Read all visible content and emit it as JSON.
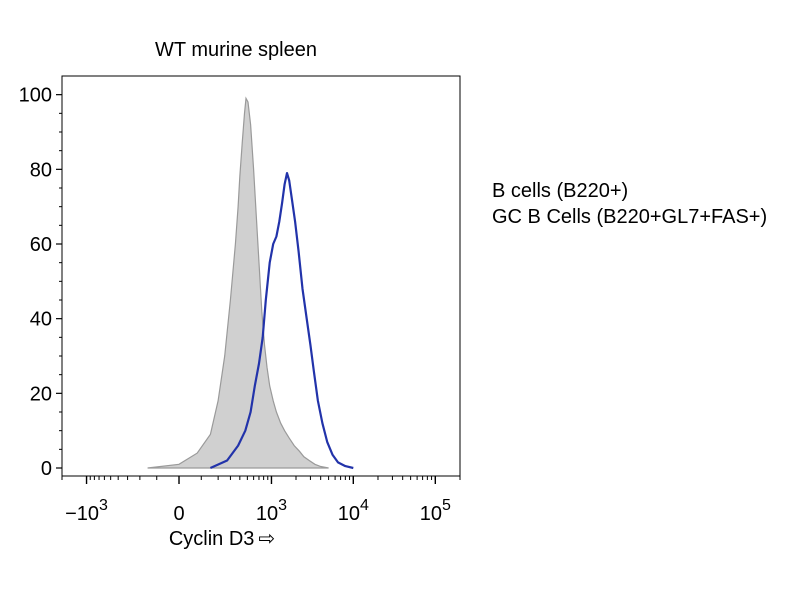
{
  "chart_data": {
    "type": "area",
    "title": "WT murine spleen",
    "xlabel": "Cyclin D3",
    "xlabel_arrow": "⇨",
    "ylabel": "",
    "x_scale": "biexponential",
    "xlim": [
      -2000,
      200000
    ],
    "ylim": [
      0,
      105
    ],
    "x_ticks": [
      {
        "base": "−10",
        "exp": "3",
        "value": -1000
      },
      {
        "base": "0",
        "exp": "",
        "value": 0
      },
      {
        "base": "10",
        "exp": "3",
        "value": 1000
      },
      {
        "base": "10",
        "exp": "4",
        "value": 10000
      },
      {
        "base": "10",
        "exp": "5",
        "value": 100000
      }
    ],
    "y_ticks": [
      "0",
      "20",
      "40",
      "60",
      "80",
      "100"
    ],
    "series": [
      {
        "name": "B cells  (B220+)",
        "style": "filled",
        "color": "#b4b4b4",
        "fill": "#d0d0d0",
        "stroke": "#9a9a9a",
        "points": [
          [
            -150,
            0
          ],
          [
            0,
            1
          ],
          [
            80,
            4
          ],
          [
            150,
            9
          ],
          [
            200,
            18
          ],
          [
            250,
            30
          ],
          [
            300,
            45
          ],
          [
            350,
            60
          ],
          [
            380,
            70
          ],
          [
            400,
            78
          ],
          [
            430,
            87
          ],
          [
            460,
            95
          ],
          [
            480,
            99
          ],
          [
            510,
            98
          ],
          [
            550,
            92
          ],
          [
            600,
            80
          ],
          [
            650,
            67
          ],
          [
            700,
            55
          ],
          [
            760,
            42
          ],
          [
            820,
            33
          ],
          [
            880,
            27
          ],
          [
            950,
            22
          ],
          [
            1050,
            18
          ],
          [
            1150,
            15
          ],
          [
            1300,
            12
          ],
          [
            1450,
            10
          ],
          [
            1650,
            8
          ],
          [
            1900,
            6
          ],
          [
            2200,
            4.5
          ],
          [
            2500,
            3
          ],
          [
            2900,
            2
          ],
          [
            3400,
            1
          ],
          [
            4000,
            0.4
          ],
          [
            5000,
            0
          ]
        ]
      },
      {
        "name": "GC B Cells (B220+GL7+FAS+)",
        "style": "line",
        "color": "#2233aa",
        "points": [
          [
            150,
            0
          ],
          [
            270,
            2
          ],
          [
            380,
            6
          ],
          [
            470,
            10
          ],
          [
            550,
            15
          ],
          [
            620,
            22
          ],
          [
            700,
            28
          ],
          [
            780,
            35
          ],
          [
            850,
            45
          ],
          [
            950,
            55
          ],
          [
            1050,
            60
          ],
          [
            1150,
            62
          ],
          [
            1250,
            66
          ],
          [
            1350,
            71
          ],
          [
            1450,
            76
          ],
          [
            1550,
            79
          ],
          [
            1650,
            77
          ],
          [
            1780,
            72
          ],
          [
            1950,
            66
          ],
          [
            2150,
            58
          ],
          [
            2400,
            48
          ],
          [
            2700,
            40
          ],
          [
            3000,
            33
          ],
          [
            3300,
            26
          ],
          [
            3700,
            18
          ],
          [
            4200,
            12
          ],
          [
            4800,
            7
          ],
          [
            5600,
            3.5
          ],
          [
            6500,
            1.5
          ],
          [
            8000,
            0.5
          ],
          [
            10000,
            0
          ]
        ]
      }
    ],
    "legend_position": "right"
  }
}
